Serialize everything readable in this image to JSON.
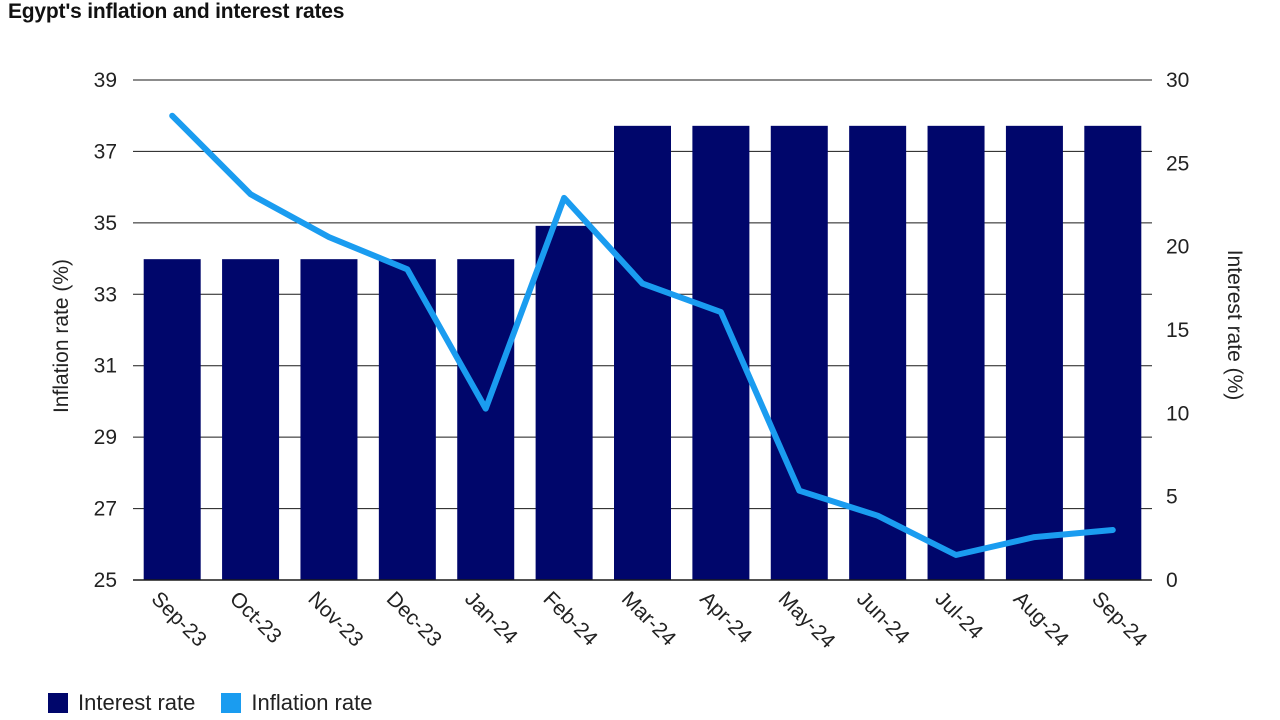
{
  "chart_data": {
    "type": "bar",
    "title": "Egypt's inflation and interest rates",
    "categories": [
      "Sep-23",
      "Oct-23",
      "Nov-23",
      "Dec-23",
      "Jan-24",
      "Feb-24",
      "Mar-24",
      "Apr-24",
      "May-24",
      "Jun-24",
      "Jul-24",
      "Aug-24",
      "Sep-24"
    ],
    "series": [
      {
        "name": "Interest rate",
        "type": "bar",
        "axis": "right",
        "color": "#00066b",
        "values": [
          19.25,
          19.25,
          19.25,
          19.25,
          19.25,
          21.25,
          27.25,
          27.25,
          27.25,
          27.25,
          27.25,
          27.25,
          27.25
        ]
      },
      {
        "name": "Inflation rate",
        "type": "line",
        "axis": "left",
        "color": "#1a9cf0",
        "values": [
          38.0,
          35.8,
          34.6,
          33.7,
          29.8,
          35.7,
          33.3,
          32.5,
          27.5,
          26.8,
          25.7,
          26.2,
          26.4
        ]
      }
    ],
    "ylabel": "Inflation rate (%)",
    "ylim": [
      25,
      39
    ],
    "yticks": [
      "25",
      "27",
      "29",
      "31",
      "33",
      "35",
      "37",
      "39"
    ],
    "y2label": "Interest rate (%)",
    "y2lim": [
      0,
      30
    ],
    "y2ticks": [
      "0",
      "5",
      "10",
      "15",
      "20",
      "25",
      "30"
    ],
    "xlabel": "",
    "grid": true,
    "legend_position": "bottom-left"
  }
}
